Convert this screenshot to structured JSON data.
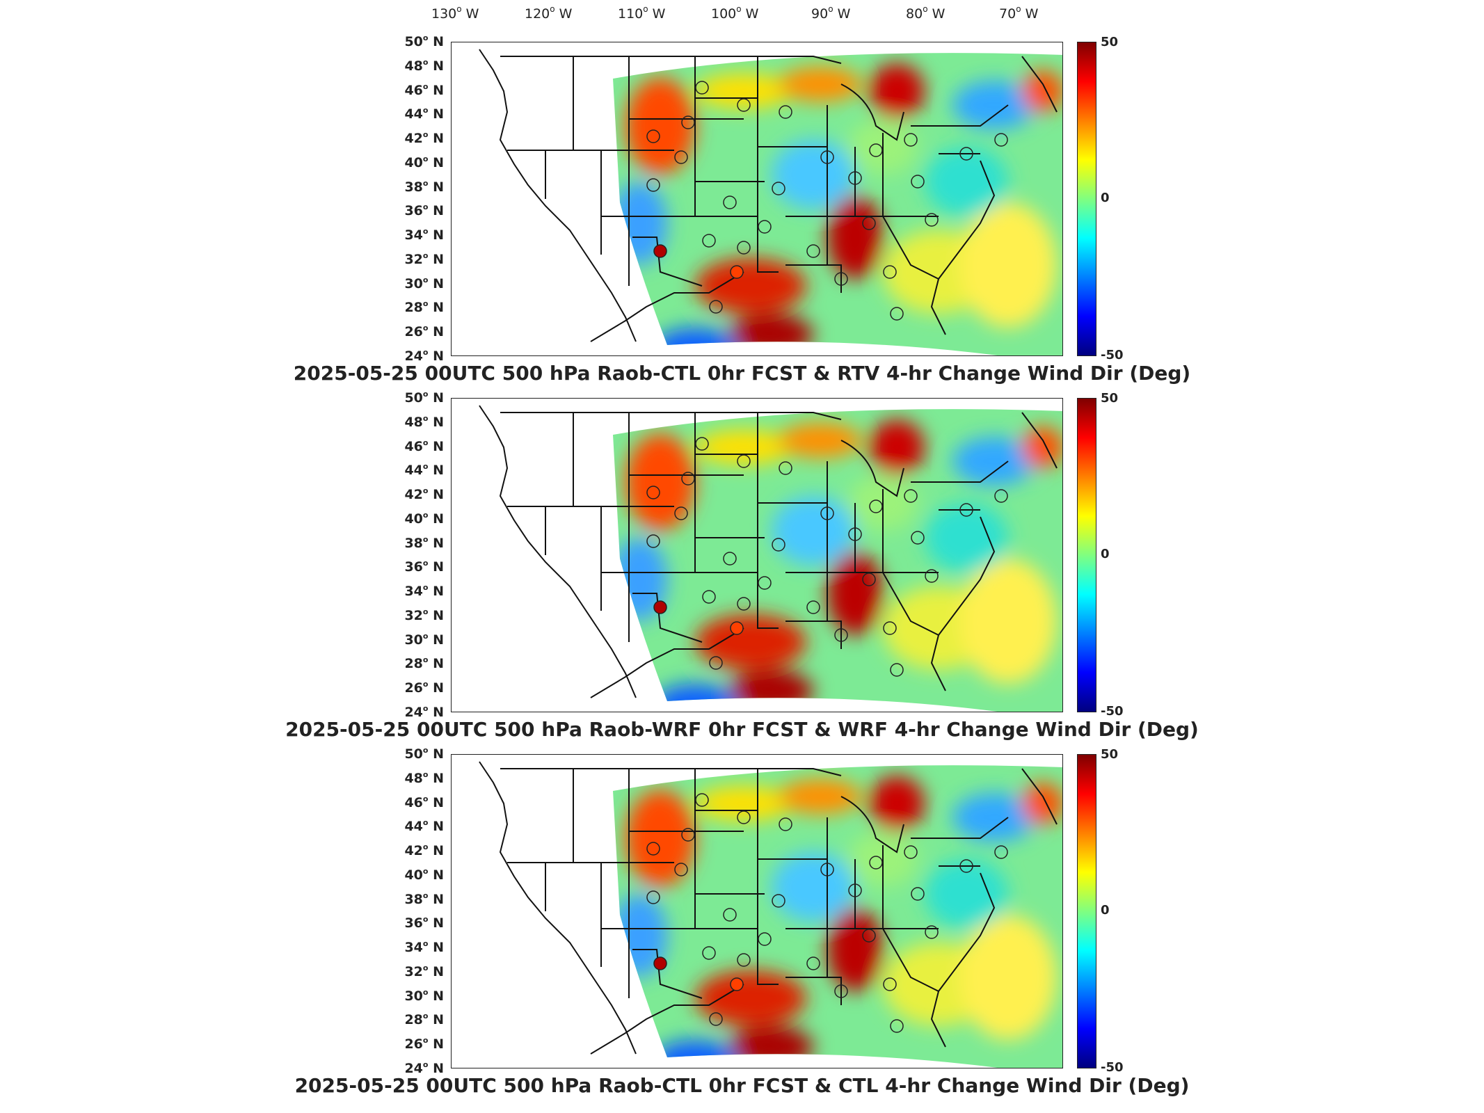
{
  "longitude_labels": [
    {
      "deg": "130",
      "hem": "W"
    },
    {
      "deg": "120",
      "hem": "W"
    },
    {
      "deg": "110",
      "hem": "W"
    },
    {
      "deg": "100",
      "hem": "W"
    },
    {
      "deg": "90",
      "hem": "W"
    },
    {
      "deg": "80",
      "hem": "W"
    },
    {
      "deg": "70",
      "hem": "W"
    }
  ],
  "latitude_labels": [
    {
      "deg": "50",
      "hem": "N"
    },
    {
      "deg": "48",
      "hem": "N"
    },
    {
      "deg": "46",
      "hem": "N"
    },
    {
      "deg": "44",
      "hem": "N"
    },
    {
      "deg": "42",
      "hem": "N"
    },
    {
      "deg": "40",
      "hem": "N"
    },
    {
      "deg": "38",
      "hem": "N"
    },
    {
      "deg": "36",
      "hem": "N"
    },
    {
      "deg": "34",
      "hem": "N"
    },
    {
      "deg": "32",
      "hem": "N"
    },
    {
      "deg": "30",
      "hem": "N"
    },
    {
      "deg": "28",
      "hem": "N"
    },
    {
      "deg": "26",
      "hem": "N"
    },
    {
      "deg": "24",
      "hem": "N"
    }
  ],
  "colorbar": {
    "max_label": "50",
    "mid_label": "0",
    "min_label": "-50",
    "colors": [
      "#00007f",
      "#0000ff",
      "#0080ff",
      "#00ffff",
      "#80ff80",
      "#ffff00",
      "#ff8000",
      "#ff0000",
      "#7f0000"
    ]
  },
  "panels": [
    {
      "title": "2025-05-25 00UTC 500 hPa Raob-CTL 0hr FCST & RTV 4-hr Change Wind Dir (Deg)"
    },
    {
      "title": "2025-05-25 00UTC 500 hPa Raob-WRF 0hr FCST & WRF 4-hr Change Wind Dir (Deg)"
    },
    {
      "title": "2025-05-25 00UTC 500 hPa Raob-CTL 0hr FCST & CTL 4-hr Change Wind Dir (Deg)"
    }
  ]
}
